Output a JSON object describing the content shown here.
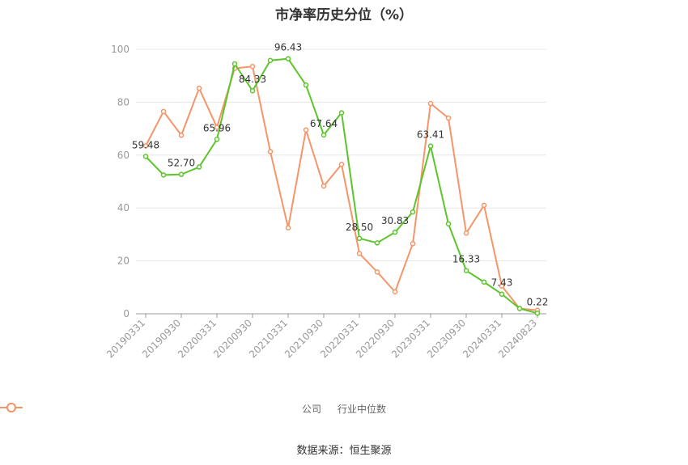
{
  "title": "市净率历史分位（%）",
  "source": "数据来源：恒生聚源",
  "chart_data": {
    "type": "line",
    "ylim": [
      0,
      100
    ],
    "yticks": [
      0,
      20,
      40,
      60,
      80,
      100
    ],
    "x_tick_labels": [
      "20190331",
      "20190930",
      "20200331",
      "20200930",
      "20210331",
      "20210930",
      "20220331",
      "20220930",
      "20230331",
      "20230930",
      "20240331",
      "20240823"
    ],
    "x_tick_index": [
      0,
      2,
      4,
      6,
      8,
      10,
      12,
      14,
      16,
      18,
      20,
      22
    ],
    "grid": true,
    "legend_position": "bottom",
    "series": [
      {
        "name": "公司",
        "color": "#5cc52c",
        "values": [
          59.48,
          52.5,
          52.7,
          55.5,
          65.96,
          94.5,
          84.33,
          95.8,
          96.43,
          86.5,
          67.64,
          76.0,
          28.5,
          26.8,
          30.83,
          38.5,
          63.41,
          34.0,
          16.33,
          12.0,
          7.43,
          2.0,
          0.22
        ],
        "labels": {
          "0": "59.48",
          "2": "52.70",
          "4": "65.96",
          "6": "84.33",
          "8": "96.43",
          "10": "67.64",
          "12": "28.50",
          "14": "30.83",
          "16": "63.41",
          "18": "16.33",
          "20": "7.43",
          "22": "0.22"
        }
      },
      {
        "name": "行业中位数",
        "color": "#f5956a",
        "values": [
          63.5,
          76.5,
          67.5,
          85.3,
          70.5,
          92.8,
          93.5,
          61.3,
          32.5,
          69.5,
          48.3,
          56.5,
          22.8,
          15.8,
          8.3,
          26.5,
          79.5,
          74.0,
          30.5,
          41.0,
          10.5,
          2.0,
          1.3
        ]
      }
    ]
  }
}
